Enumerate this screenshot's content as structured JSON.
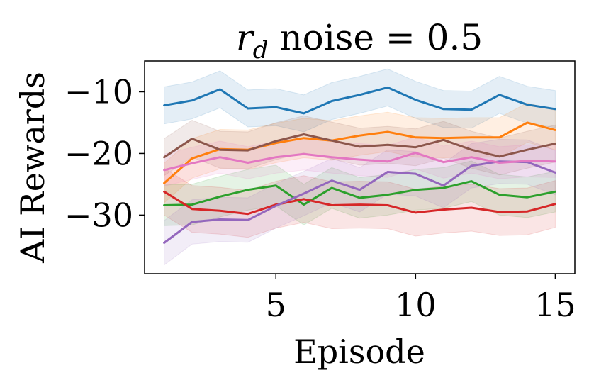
{
  "chart_data": {
    "type": "line",
    "title_symbol": "r",
    "title_subscript": "d",
    "title_rest": " noise = 0.5",
    "xlabel": "Episode",
    "ylabel": "AI Rewards",
    "xlim": [
      0.3,
      15.7
    ],
    "ylim": [
      -39.5,
      -5
    ],
    "xticks": [
      5,
      10,
      15
    ],
    "yticks": [
      -10,
      -20,
      -30
    ],
    "ytick_labels": [
      "−10",
      "−20",
      "−30"
    ],
    "x": [
      1,
      2,
      3,
      4,
      5,
      6,
      7,
      8,
      9,
      10,
      11,
      12,
      13,
      14,
      15
    ],
    "grid": false,
    "series": [
      {
        "color": "#1f77b4",
        "band": 3.0,
        "values": [
          -12.2,
          -11.4,
          -9.6,
          -12.7,
          -12.5,
          -13.5,
          -11.5,
          -10.5,
          -9.3,
          -11.3,
          -12.8,
          -12.9,
          -10.5,
          -12.1,
          -12.8
        ]
      },
      {
        "color": "#ff7f0e",
        "band": 3.2,
        "values": [
          -24.8,
          -20.8,
          -19.3,
          -19.4,
          -18.3,
          -17.5,
          -17.9,
          -17.1,
          -16.5,
          -17.4,
          -17.5,
          -17.4,
          -17.4,
          -15.0,
          -16.2
        ]
      },
      {
        "color": "#2ca02c",
        "band": 3.3,
        "values": [
          -28.4,
          -28.3,
          -27.0,
          -25.9,
          -25.2,
          -28.3,
          -25.6,
          -27.2,
          -26.7,
          -25.9,
          -25.6,
          -24.5,
          -26.7,
          -27.1,
          -26.2
        ]
      },
      {
        "color": "#d62728",
        "band": 3.8,
        "values": [
          -26.2,
          -29.0,
          -29.3,
          -29.8,
          -28.3,
          -27.4,
          -28.4,
          -28.3,
          -28.4,
          -29.6,
          -29.1,
          -28.8,
          -29.5,
          -29.4,
          -28.2
        ]
      },
      {
        "color": "#9467bd",
        "band": 3.6,
        "values": [
          -34.5,
          -31.1,
          -30.7,
          -30.8,
          -28.5,
          -26.5,
          -24.4,
          -25.9,
          -23.0,
          -23.3,
          -25.2,
          -22.0,
          -21.3,
          -21.4,
          -23.1
        ]
      },
      {
        "color": "#8c564b",
        "band": 3.0,
        "values": [
          -20.6,
          -17.6,
          -19.4,
          -19.5,
          -18.0,
          -16.9,
          -17.9,
          -18.9,
          -18.6,
          -19.0,
          -17.8,
          -19.4,
          -20.5,
          -19.4,
          -18.4
        ]
      },
      {
        "color": "#e377c2",
        "band": 2.6,
        "values": [
          -22.7,
          -21.6,
          -20.6,
          -21.5,
          -20.6,
          -20.1,
          -20.6,
          -21.0,
          -21.3,
          -19.9,
          -21.4,
          -20.6,
          -21.5,
          -21.2,
          -21.3
        ]
      }
    ]
  }
}
